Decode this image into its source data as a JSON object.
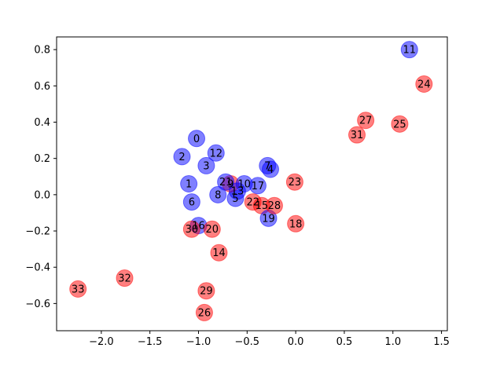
{
  "chart_data": {
    "type": "scatter",
    "title": "",
    "xlabel": "",
    "ylabel": "",
    "xlim": [
      -2.46,
      1.56
    ],
    "ylim": [
      -0.75,
      0.87
    ],
    "xticks": [
      {
        "value": -2.0,
        "label": "−2.0"
      },
      {
        "value": -1.5,
        "label": "−1.5"
      },
      {
        "value": -1.0,
        "label": "−1.0"
      },
      {
        "value": -0.5,
        "label": "−0.5"
      },
      {
        "value": 0.0,
        "label": "0.0"
      },
      {
        "value": 0.5,
        "label": "0.5"
      },
      {
        "value": 1.0,
        "label": "1.0"
      },
      {
        "value": 1.5,
        "label": "1.5"
      }
    ],
    "yticks": [
      {
        "value": -0.6,
        "label": "−0.6"
      },
      {
        "value": -0.4,
        "label": "−0.4"
      },
      {
        "value": -0.2,
        "label": "−0.2"
      },
      {
        "value": 0.0,
        "label": "0.0"
      },
      {
        "value": 0.2,
        "label": "0.2"
      },
      {
        "value": 0.4,
        "label": "0.4"
      },
      {
        "value": 0.6,
        "label": "0.6"
      },
      {
        "value": 0.8,
        "label": "0.8"
      }
    ],
    "grid": false,
    "legend": "none",
    "colors": {
      "blue": "#0000ff",
      "red": "#ff0000"
    },
    "point_alpha": 0.5,
    "points": [
      {
        "label": "0",
        "x": -1.02,
        "y": 0.31,
        "color": "blue"
      },
      {
        "label": "1",
        "x": -1.1,
        "y": 0.06,
        "color": "blue"
      },
      {
        "label": "2",
        "x": -1.17,
        "y": 0.21,
        "color": "blue"
      },
      {
        "label": "3",
        "x": -0.92,
        "y": 0.16,
        "color": "blue"
      },
      {
        "label": "4",
        "x": -0.26,
        "y": 0.14,
        "color": "blue"
      },
      {
        "label": "5",
        "x": -0.62,
        "y": -0.02,
        "color": "blue"
      },
      {
        "label": "6",
        "x": -1.07,
        "y": -0.04,
        "color": "blue"
      },
      {
        "label": "7",
        "x": -0.29,
        "y": 0.16,
        "color": "blue"
      },
      {
        "label": "8",
        "x": -0.8,
        "y": 0.0,
        "color": "blue"
      },
      {
        "label": "9",
        "x": -0.67,
        "y": 0.06,
        "color": "red"
      },
      {
        "label": "10",
        "x": -0.53,
        "y": 0.06,
        "color": "blue"
      },
      {
        "label": "11",
        "x": 1.17,
        "y": 0.8,
        "color": "blue"
      },
      {
        "label": "12",
        "x": -0.82,
        "y": 0.23,
        "color": "blue"
      },
      {
        "label": "13",
        "x": -0.6,
        "y": 0.02,
        "color": "blue"
      },
      {
        "label": "14",
        "x": -0.79,
        "y": -0.32,
        "color": "red"
      },
      {
        "label": "15",
        "x": -0.35,
        "y": -0.06,
        "color": "red"
      },
      {
        "label": "16",
        "x": -1.0,
        "y": -0.17,
        "color": "blue"
      },
      {
        "label": "17",
        "x": -0.39,
        "y": 0.05,
        "color": "blue"
      },
      {
        "label": "18",
        "x": 0.0,
        "y": -0.16,
        "color": "red"
      },
      {
        "label": "19",
        "x": -0.28,
        "y": -0.13,
        "color": "blue"
      },
      {
        "label": "20",
        "x": -0.86,
        "y": -0.19,
        "color": "red"
      },
      {
        "label": "21",
        "x": -0.72,
        "y": 0.07,
        "color": "blue"
      },
      {
        "label": "22",
        "x": -0.44,
        "y": -0.04,
        "color": "red"
      },
      {
        "label": "23",
        "x": -0.01,
        "y": 0.07,
        "color": "red"
      },
      {
        "label": "24",
        "x": 1.32,
        "y": 0.61,
        "color": "red"
      },
      {
        "label": "25",
        "x": 1.07,
        "y": 0.39,
        "color": "red"
      },
      {
        "label": "26",
        "x": -0.94,
        "y": -0.65,
        "color": "red"
      },
      {
        "label": "27",
        "x": 0.72,
        "y": 0.41,
        "color": "red"
      },
      {
        "label": "28",
        "x": -0.22,
        "y": -0.06,
        "color": "red"
      },
      {
        "label": "29",
        "x": -0.92,
        "y": -0.53,
        "color": "red"
      },
      {
        "label": "30",
        "x": -1.07,
        "y": -0.19,
        "color": "red"
      },
      {
        "label": "31",
        "x": 0.63,
        "y": 0.33,
        "color": "red"
      },
      {
        "label": "32",
        "x": -1.76,
        "y": -0.46,
        "color": "red"
      },
      {
        "label": "33",
        "x": -2.24,
        "y": -0.52,
        "color": "red"
      }
    ]
  }
}
